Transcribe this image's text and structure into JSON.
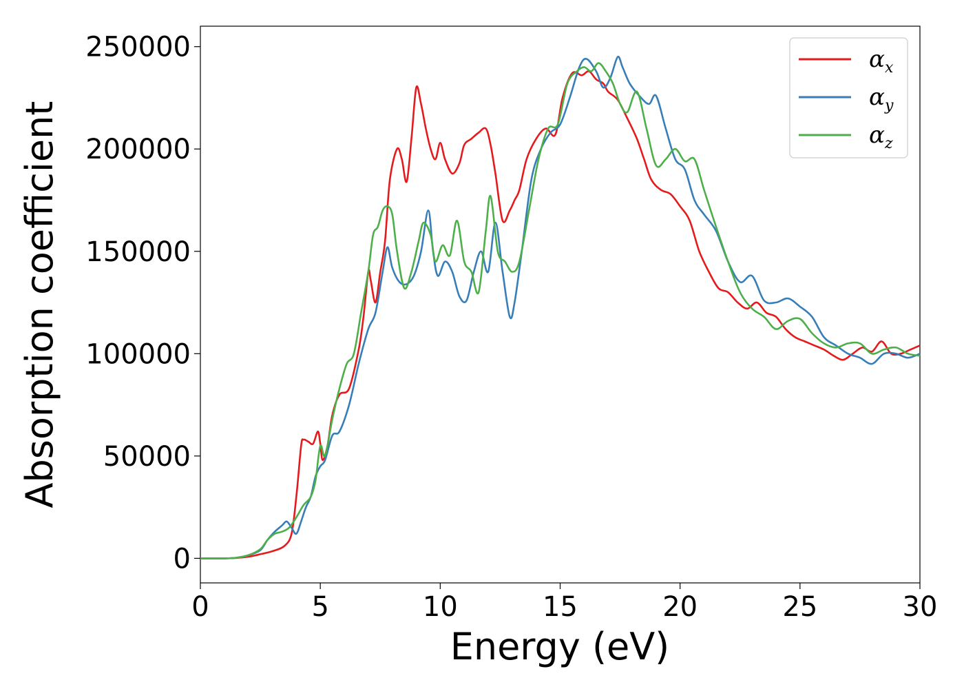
{
  "chart_data": {
    "type": "line",
    "xlabel": "Energy (eV)",
    "ylabel": "Absorption coefficient",
    "xlim": [
      0,
      30
    ],
    "ylim": [
      -12000,
      260000
    ],
    "x_ticks": [
      "0",
      "5",
      "10",
      "15",
      "20",
      "25",
      "30"
    ],
    "y_ticks": [
      "0",
      "50000",
      "100000",
      "150000",
      "200000",
      "250000"
    ],
    "grid": false,
    "legend_position": "top-right",
    "series": [
      {
        "name": "α",
        "subscript": "x",
        "color": "#e41a1c",
        "x": [
          0,
          1,
          1.5,
          2,
          2.5,
          3,
          3.5,
          3.8,
          4.0,
          4.2,
          4.3,
          4.5,
          4.7,
          4.9,
          5.0,
          5.1,
          5.3,
          5.5,
          5.8,
          6.2,
          6.6,
          6.8,
          7.0,
          7.1,
          7.3,
          7.5,
          7.7,
          7.9,
          8.2,
          8.4,
          8.6,
          8.8,
          9.0,
          9.2,
          9.4,
          9.6,
          9.8,
          10.0,
          10.2,
          10.5,
          10.8,
          11.0,
          11.3,
          11.6,
          11.9,
          12.1,
          12.3,
          12.6,
          12.9,
          13.1,
          13.3,
          13.6,
          14.0,
          14.4,
          14.8,
          15.1,
          15.5,
          15.9,
          16.2,
          16.5,
          16.8,
          17.0,
          17.4,
          17.8,
          18.2,
          18.5,
          18.8,
          19.2,
          19.6,
          20.0,
          20.4,
          20.8,
          21.2,
          21.6,
          22.0,
          22.4,
          22.8,
          23.2,
          23.6,
          24.0,
          24.4,
          24.8,
          25.2,
          25.6,
          26.0,
          26.4,
          26.8,
          27.2,
          27.6,
          28.0,
          28.4,
          28.8,
          29.2,
          29.6,
          30.0
        ],
        "values": [
          0,
          0,
          200,
          800,
          2000,
          3500,
          6000,
          12000,
          30000,
          55000,
          58000,
          57000,
          56000,
          62000,
          56000,
          48000,
          55000,
          70000,
          80000,
          83000,
          102000,
          118000,
          140000,
          136000,
          125000,
          140000,
          155000,
          185000,
          200000,
          195000,
          184000,
          205000,
          230000,
          222000,
          210000,
          200000,
          195000,
          203000,
          195000,
          188000,
          193000,
          202000,
          205000,
          208000,
          210000,
          202000,
          188000,
          165000,
          170000,
          175000,
          180000,
          195000,
          205000,
          210000,
          207000,
          225000,
          237000,
          236000,
          238000,
          234000,
          232000,
          228000,
          224000,
          215000,
          205000,
          195000,
          185000,
          180000,
          178000,
          172000,
          165000,
          150000,
          140000,
          132000,
          130000,
          125000,
          122000,
          125000,
          120000,
          118000,
          112000,
          108000,
          106000,
          104000,
          102000,
          99000,
          97000,
          100000,
          103000,
          101000,
          106000,
          100000,
          100000,
          102000,
          104000
        ]
      },
      {
        "name": "α",
        "subscript": "y",
        "color": "#377eb8",
        "x": [
          0,
          1,
          1.5,
          2,
          2.5,
          2.8,
          3.1,
          3.4,
          3.6,
          3.8,
          4.0,
          4.2,
          4.4,
          4.6,
          4.8,
          5.0,
          5.2,
          5.5,
          5.8,
          6.2,
          6.6,
          7.0,
          7.3,
          7.6,
          7.8,
          8.0,
          8.3,
          8.6,
          8.9,
          9.2,
          9.5,
          9.7,
          9.9,
          10.2,
          10.5,
          10.8,
          11.1,
          11.4,
          11.7,
          12.0,
          12.3,
          12.6,
          12.9,
          13.1,
          13.4,
          13.8,
          14.2,
          14.6,
          15.0,
          15.4,
          15.8,
          16.1,
          16.5,
          16.8,
          17.1,
          17.4,
          17.6,
          17.9,
          18.3,
          18.7,
          19.0,
          19.4,
          19.8,
          20.2,
          20.6,
          21.0,
          21.5,
          22.0,
          22.5,
          23.0,
          23.5,
          24.0,
          24.5,
          25.0,
          25.5,
          26.0,
          26.5,
          27.0,
          27.5,
          28.0,
          28.5,
          29.0,
          29.5,
          30.0
        ],
        "values": [
          0,
          0,
          300,
          1500,
          4000,
          9000,
          13000,
          16000,
          18000,
          15000,
          12000,
          18000,
          25000,
          30000,
          40000,
          45000,
          48000,
          60000,
          62000,
          75000,
          95000,
          112000,
          120000,
          140000,
          152000,
          142000,
          135000,
          134000,
          138000,
          150000,
          170000,
          150000,
          138000,
          145000,
          140000,
          128000,
          126000,
          140000,
          150000,
          140000,
          164000,
          140000,
          118000,
          125000,
          150000,
          185000,
          200000,
          208000,
          212000,
          225000,
          240000,
          244000,
          238000,
          230000,
          235000,
          245000,
          240000,
          232000,
          226000,
          222000,
          226000,
          210000,
          195000,
          190000,
          175000,
          168000,
          160000,
          145000,
          135000,
          138000,
          126000,
          125000,
          127000,
          123000,
          118000,
          108000,
          104000,
          100000,
          98000,
          95000,
          100000,
          100000,
          98000,
          100000
        ]
      },
      {
        "name": "α",
        "subscript": "z",
        "color": "#4daf4a",
        "x": [
          0,
          1,
          1.5,
          2,
          2.5,
          2.8,
          3.1,
          3.4,
          3.7,
          4.0,
          4.3,
          4.6,
          4.8,
          5.0,
          5.2,
          5.5,
          5.8,
          6.1,
          6.4,
          6.7,
          7.0,
          7.2,
          7.4,
          7.6,
          7.8,
          8.0,
          8.2,
          8.5,
          8.8,
          9.1,
          9.3,
          9.6,
          9.8,
          10.1,
          10.4,
          10.7,
          11.0,
          11.3,
          11.6,
          11.9,
          12.1,
          12.4,
          12.7,
          13.0,
          13.3,
          13.7,
          14.1,
          14.5,
          14.9,
          15.3,
          15.7,
          16.0,
          16.3,
          16.6,
          16.9,
          17.2,
          17.5,
          17.8,
          18.2,
          18.6,
          19.0,
          19.4,
          19.8,
          20.2,
          20.6,
          21.0,
          21.5,
          22.0,
          22.5,
          23.0,
          23.5,
          24.0,
          24.5,
          25.0,
          25.5,
          26.0,
          26.5,
          27.0,
          27.5,
          28.0,
          28.5,
          29.0,
          29.5,
          30.0
        ],
        "values": [
          0,
          0,
          300,
          1500,
          4500,
          9000,
          12000,
          13000,
          15000,
          20000,
          26000,
          30000,
          38000,
          55000,
          50000,
          68000,
          83000,
          95000,
          100000,
          120000,
          140000,
          158000,
          162000,
          170000,
          172000,
          168000,
          150000,
          132000,
          140000,
          155000,
          164000,
          158000,
          145000,
          153000,
          148000,
          165000,
          145000,
          140000,
          130000,
          160000,
          177000,
          150000,
          145000,
          140000,
          145000,
          170000,
          195000,
          210000,
          212000,
          232000,
          238000,
          240000,
          238000,
          242000,
          238000,
          232000,
          222000,
          218000,
          228000,
          210000,
          192000,
          195000,
          200000,
          194000,
          195000,
          180000,
          162000,
          145000,
          130000,
          122000,
          118000,
          112000,
          116000,
          117000,
          110000,
          105000,
          103000,
          105000,
          105000,
          100000,
          102000,
          103000,
          100000,
          99000
        ]
      }
    ]
  }
}
